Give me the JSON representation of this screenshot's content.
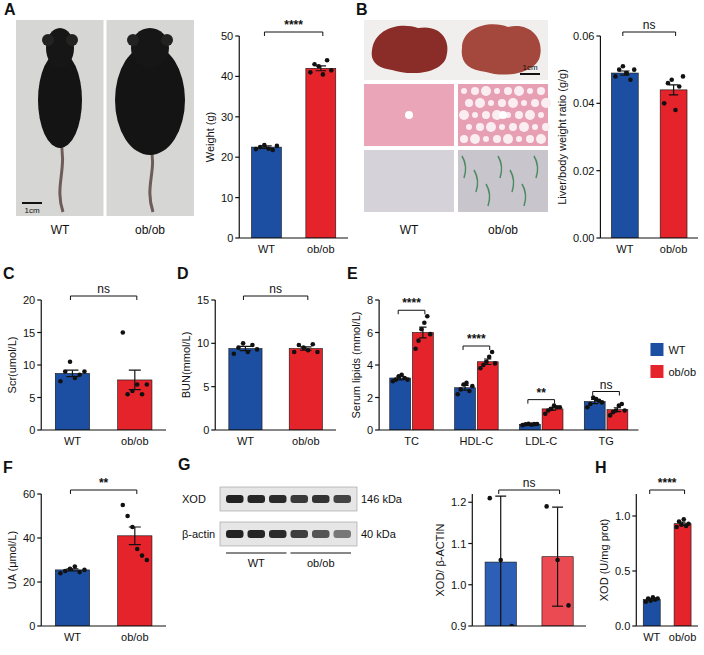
{
  "chart_data": [
    {
      "type": "bar",
      "panel": "A",
      "y_label": "Weight (g)",
      "categories": [
        "WT",
        "ob/ob"
      ],
      "values": [
        22.5,
        42.0
      ],
      "errors": [
        0.3,
        0.6
      ],
      "points": [
        [
          22.0,
          22.5,
          23.0,
          22.1,
          21.8,
          22.8
        ],
        [
          41.0,
          43.0,
          42.5,
          40.5,
          44.0,
          41.5
        ]
      ],
      "colors": [
        "#1c4fa1",
        "#e5232b"
      ],
      "ylim": [
        0,
        50
      ],
      "yticks": [
        0,
        10,
        20,
        30,
        40,
        50
      ],
      "annotations": [
        "****"
      ]
    },
    {
      "type": "bar",
      "panel": "B",
      "y_label": "Liver/body weight ratio (g/g)",
      "categories": [
        "WT",
        "ob/ob"
      ],
      "values": [
        0.049,
        0.044
      ],
      "errors": [
        0.0006,
        0.0015
      ],
      "points": [
        [
          0.048,
          0.05,
          0.051,
          0.049,
          0.047,
          0.05
        ],
        [
          0.04,
          0.046,
          0.047,
          0.038,
          0.045,
          0.048
        ]
      ],
      "colors": [
        "#1c4fa1",
        "#e5232b"
      ],
      "ylim": [
        0,
        0.06
      ],
      "yticks": [
        {
          "value": 0,
          "label": "0.00"
        },
        {
          "value": 0.02,
          "label": "0.02"
        },
        {
          "value": 0.04,
          "label": "0.04"
        },
        {
          "value": 0.06,
          "label": "0.06"
        }
      ],
      "annotations": [
        "ns"
      ]
    },
    {
      "type": "bar",
      "panel": "C",
      "y_label": "Scr(umol/L)",
      "categories": [
        "WT",
        "ob/ob"
      ],
      "values": [
        8.7,
        7.7
      ],
      "errors": [
        0.5,
        1.5
      ],
      "points": [
        [
          7.5,
          9.0,
          10.5,
          8.0,
          8.5,
          9.0
        ],
        [
          15.0,
          5.5,
          6.0,
          7.0,
          5.5,
          7.0
        ]
      ],
      "colors": [
        "#1c4fa1",
        "#e5232b"
      ],
      "ylim": [
        0,
        20
      ],
      "yticks": [
        0,
        5,
        10,
        15,
        20
      ],
      "annotations": [
        "ns"
      ]
    },
    {
      "type": "bar",
      "panel": "D",
      "y_label": "BUN(mmol/L)",
      "categories": [
        "WT",
        "ob/ob"
      ],
      "values": [
        9.4,
        9.4
      ],
      "errors": [
        0.25,
        0.2
      ],
      "points": [
        [
          8.8,
          9.5,
          10.0,
          9.0,
          9.8,
          9.3
        ],
        [
          9.0,
          9.8,
          9.5,
          9.2,
          9.9,
          9.0
        ]
      ],
      "colors": [
        "#1c4fa1",
        "#e5232b"
      ],
      "ylim": [
        0,
        15
      ],
      "yticks": [
        0,
        5,
        10,
        15
      ],
      "annotations": [
        "ns"
      ]
    },
    {
      "type": "bar",
      "panel": "E",
      "y_label": "Serum lipids (mmol/L)",
      "categories": [
        "TC",
        "HDL-C",
        "LDL-C",
        "TG"
      ],
      "series": [
        {
          "name": "WT",
          "color": "#1c4fa1",
          "values": [
            3.2,
            2.6,
            0.35,
            1.75
          ],
          "errors": [
            0.12,
            0.15,
            0.02,
            0.13
          ],
          "points": [
            [
              3.0,
              3.1,
              3.3,
              3.4,
              3.2,
              3.1
            ],
            [
              2.2,
              2.5,
              2.8,
              2.9,
              2.4,
              2.7
            ],
            [
              0.3,
              0.35,
              0.38,
              0.33,
              0.36,
              0.37
            ],
            [
              1.4,
              1.6,
              2.0,
              1.9,
              1.8,
              1.7
            ]
          ]
        },
        {
          "name": "ob/ob",
          "color": "#e5232b",
          "values": [
            6.0,
            4.2,
            1.3,
            1.25
          ],
          "errors": [
            0.33,
            0.17,
            0.08,
            0.12
          ],
          "points": [
            [
              5.0,
              5.5,
              6.2,
              6.6,
              7.0,
              5.9
            ],
            [
              3.8,
              4.0,
              4.2,
              4.5,
              4.8,
              4.1
            ],
            [
              1.0,
              1.2,
              1.3,
              1.5,
              1.4,
              1.4
            ],
            [
              0.9,
              1.1,
              1.2,
              1.5,
              1.6,
              1.2
            ]
          ]
        }
      ],
      "ylim": [
        0,
        8
      ],
      "yticks": [
        0,
        2,
        4,
        6,
        8
      ],
      "legend": "right",
      "annotations": [
        "****",
        "****",
        "**",
        "ns"
      ]
    },
    {
      "type": "bar",
      "panel": "F",
      "y_label": "UA (μmol/L)",
      "categories": [
        "WT",
        "ob/ob"
      ],
      "values": [
        25.5,
        41.0
      ],
      "errors": [
        0.5,
        4.0
      ],
      "points": [
        [
          24.0,
          25.0,
          26.0,
          27.0,
          24.5,
          25.5
        ],
        [
          55.0,
          50.0,
          45.0,
          35.0,
          32.0,
          30.0
        ]
      ],
      "colors": [
        "#1c4fa1",
        "#e5232b"
      ],
      "ylim": [
        0,
        60
      ],
      "yticks": [
        0,
        20,
        40,
        60
      ],
      "annotations": [
        "**"
      ]
    },
    {
      "type": "bar",
      "panel": "G",
      "y_label": "XOD/ β-ACTIN",
      "categories": [
        null,
        null
      ],
      "values": [
        1.055,
        1.068
      ],
      "errors": [
        0.16,
        0.12
      ],
      "points": [
        [
          1.21,
          1.06,
          0.9
        ],
        [
          1.19,
          1.06,
          0.95
        ]
      ],
      "colors": [
        "#2e5fb7",
        "#ec4a52"
      ],
      "ylim": [
        0.9,
        1.22
      ],
      "yticks": [
        0.9,
        {
          "value": 1.0,
          "label": "1.0"
        },
        1.1,
        1.2
      ],
      "tick_labels": "y",
      "annotations": [
        "ns"
      ]
    },
    {
      "type": "bar",
      "panel": "H",
      "y_label": "XOD (U/mg prot)",
      "categories": [
        "WT",
        "ob/ob"
      ],
      "values": [
        0.24,
        0.93
      ],
      "errors": [
        0.01,
        0.015
      ],
      "points": [
        [
          0.22,
          0.25,
          0.23,
          0.26,
          0.24,
          0.25
        ],
        [
          0.9,
          0.95,
          0.92,
          0.97,
          0.91,
          0.93
        ]
      ],
      "colors": [
        "#1c4fa1",
        "#e5232b"
      ],
      "ylim": [
        0,
        1.2
      ],
      "yticks": [
        {
          "value": 0,
          "label": "0.0"
        },
        0.5,
        {
          "value": 1.0,
          "label": "1.0"
        }
      ],
      "annotations": [
        "****"
      ]
    }
  ],
  "images": [
    {
      "labels": [
        "WT",
        "ob/ob"
      ],
      "scale": "1cm"
    },
    {
      "labels": [
        "WT",
        "ob/ob"
      ],
      "scale": "1cm"
    }
  ],
  "blot": {
    "rows": [
      "XOD",
      "β-actin"
    ],
    "sizes": [
      "146 kDa",
      "40 kDa"
    ],
    "lanes": [
      "WT",
      "ob/ob"
    ]
  }
}
